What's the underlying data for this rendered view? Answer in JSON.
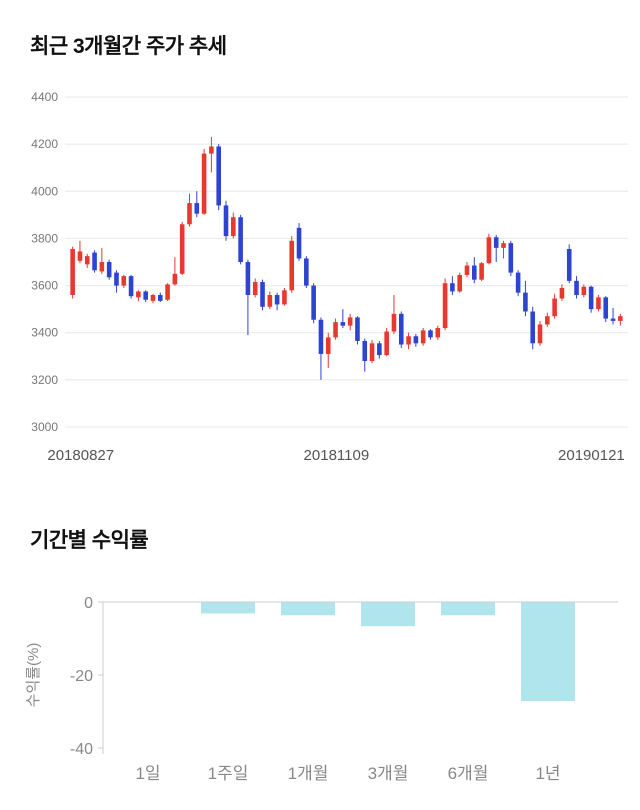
{
  "price_section": {
    "title": "최근 3개월간 주가 추세"
  },
  "returns_section": {
    "title": "기간별 수익률"
  },
  "colors": {
    "up_candle": "#e8392f",
    "down_candle": "#2c44cf",
    "bar_fill": "#b0e5ee",
    "grid": "#e8e8e8",
    "axis": "#cccccc",
    "tick_label": "#777777",
    "date_label": "#555555",
    "bar_label": "#888888"
  },
  "chart_data": [
    {
      "type": "candlestick",
      "title": "최근 3개월간 주가 추세",
      "ylim": [
        3000,
        4400
      ],
      "yticks": [
        3000,
        3200,
        3400,
        3600,
        3800,
        4000,
        4200,
        4400
      ],
      "xtick_labels": [
        "20180827",
        "20181109",
        "20190121"
      ],
      "grid": true,
      "candles": [
        [
          3560,
          3765,
          3545,
          3755
        ],
        [
          3705,
          3790,
          3695,
          3745
        ],
        [
          3690,
          3735,
          3675,
          3725
        ],
        [
          3740,
          3750,
          3655,
          3665
        ],
        [
          3660,
          3760,
          3650,
          3700
        ],
        [
          3700,
          3710,
          3625,
          3635
        ],
        [
          3655,
          3665,
          3570,
          3600
        ],
        [
          3600,
          3645,
          3590,
          3640
        ],
        [
          3640,
          3645,
          3545,
          3555
        ],
        [
          3550,
          3580,
          3535,
          3575
        ],
        [
          3575,
          3580,
          3530,
          3540
        ],
        [
          3535,
          3565,
          3525,
          3560
        ],
        [
          3560,
          3570,
          3530,
          3535
        ],
        [
          3540,
          3610,
          3535,
          3605
        ],
        [
          3605,
          3720,
          3600,
          3650
        ],
        [
          3650,
          3870,
          3645,
          3860
        ],
        [
          3860,
          3990,
          3850,
          3950
        ],
        [
          3950,
          4000,
          3890,
          3905
        ],
        [
          3905,
          4180,
          3900,
          4160
        ],
        [
          4160,
          4230,
          4080,
          4190
        ],
        [
          4190,
          4200,
          3920,
          3940
        ],
        [
          3940,
          3960,
          3790,
          3810
        ],
        [
          3810,
          3910,
          3800,
          3890
        ],
        [
          3890,
          3900,
          3690,
          3700
        ],
        [
          3700,
          3710,
          3390,
          3560
        ],
        [
          3560,
          3630,
          3550,
          3615
        ],
        [
          3615,
          3625,
          3495,
          3510
        ],
        [
          3510,
          3575,
          3500,
          3560
        ],
        [
          3560,
          3570,
          3495,
          3520
        ],
        [
          3520,
          3590,
          3515,
          3580
        ],
        [
          3580,
          3810,
          3570,
          3790
        ],
        [
          3845,
          3865,
          3705,
          3715
        ],
        [
          3715,
          3725,
          3590,
          3600
        ],
        [
          3600,
          3610,
          3440,
          3455
        ],
        [
          3455,
          3465,
          3200,
          3310
        ],
        [
          3310,
          3400,
          3250,
          3380
        ],
        [
          3380,
          3460,
          3370,
          3445
        ],
        [
          3445,
          3500,
          3420,
          3430
        ],
        [
          3430,
          3480,
          3410,
          3465
        ],
        [
          3465,
          3470,
          3350,
          3365
        ],
        [
          3365,
          3375,
          3235,
          3280
        ],
        [
          3280,
          3370,
          3270,
          3355
        ],
        [
          3355,
          3365,
          3290,
          3305
        ],
        [
          3305,
          3420,
          3300,
          3405
        ],
        [
          3405,
          3560,
          3395,
          3480
        ],
        [
          3480,
          3490,
          3335,
          3350
        ],
        [
          3350,
          3400,
          3330,
          3385
        ],
        [
          3385,
          3395,
          3340,
          3355
        ],
        [
          3355,
          3420,
          3345,
          3410
        ],
        [
          3410,
          3415,
          3370,
          3380
        ],
        [
          3380,
          3430,
          3370,
          3420
        ],
        [
          3420,
          3630,
          3410,
          3610
        ],
        [
          3610,
          3640,
          3560,
          3575
        ],
        [
          3575,
          3655,
          3570,
          3645
        ],
        [
          3645,
          3700,
          3635,
          3685
        ],
        [
          3685,
          3720,
          3610,
          3625
        ],
        [
          3625,
          3700,
          3620,
          3695
        ],
        [
          3695,
          3820,
          3690,
          3805
        ],
        [
          3805,
          3815,
          3700,
          3760
        ],
        [
          3760,
          3790,
          3715,
          3780
        ],
        [
          3780,
          3790,
          3640,
          3655
        ],
        [
          3655,
          3665,
          3555,
          3570
        ],
        [
          3570,
          3620,
          3470,
          3490
        ],
        [
          3490,
          3510,
          3330,
          3355
        ],
        [
          3355,
          3450,
          3345,
          3435
        ],
        [
          3435,
          3485,
          3425,
          3470
        ],
        [
          3470,
          3565,
          3460,
          3545
        ],
        [
          3545,
          3605,
          3535,
          3590
        ],
        [
          3755,
          3775,
          3610,
          3620
        ],
        [
          3620,
          3640,
          3545,
          3560
        ],
        [
          3560,
          3605,
          3550,
          3595
        ],
        [
          3595,
          3600,
          3485,
          3500
        ],
        [
          3500,
          3560,
          3490,
          3550
        ],
        [
          3550,
          3555,
          3445,
          3460
        ],
        [
          3460,
          3505,
          3435,
          3450
        ],
        [
          3450,
          3480,
          3430,
          3470
        ]
      ]
    },
    {
      "type": "bar",
      "title": "기간별 수익률",
      "categories": [
        "1일",
        "1주일",
        "1개월",
        "3개월",
        "6개월",
        "1년"
      ],
      "values": [
        0,
        -3,
        -3.5,
        -6.5,
        -3.5,
        -27
      ],
      "ylabel": "수익률(%)",
      "ylim": [
        -40,
        0
      ],
      "yticks": [
        0,
        -20,
        -40
      ],
      "grid": false,
      "legend": "none"
    }
  ]
}
